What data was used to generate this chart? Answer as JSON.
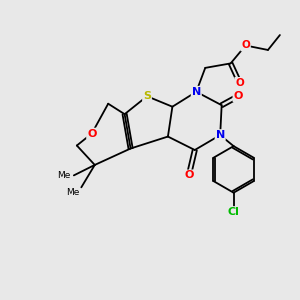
{
  "bg_color": "#e8e8e8",
  "atom_colors": {
    "S": "#b8b800",
    "N": "#0000ee",
    "O": "#ff0000",
    "Cl": "#00bb00",
    "C": "#000000"
  },
  "bond_color": "#000000",
  "figsize": [
    3.0,
    3.0
  ],
  "dpi": 100,
  "lw": 1.3,
  "fs": 7.5
}
